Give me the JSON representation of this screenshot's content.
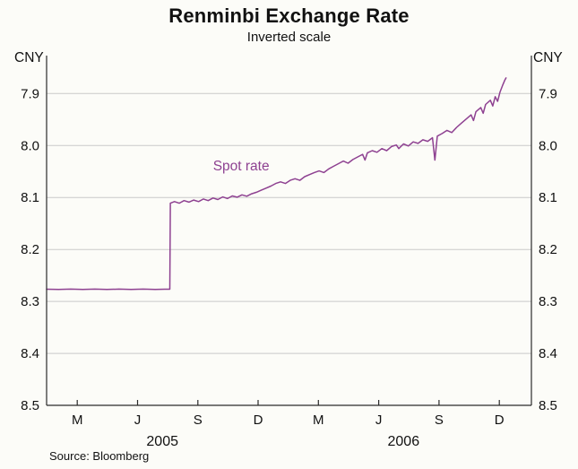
{
  "chart": {
    "title": "Renminbi Exchange Rate",
    "subtitle": "Inverted scale",
    "y_unit_left": "CNY",
    "y_unit_right": "CNY",
    "series_label": "Spot rate",
    "source": "Source: Bloomberg"
  },
  "chart_data": {
    "type": "line",
    "title": "Renminbi Exchange Rate",
    "subtitle": "Inverted scale",
    "xlabel": "",
    "ylabel": "CNY",
    "y_axis_inverted": true,
    "grid": true,
    "xlim": [
      2005.04,
      2007.05
    ],
    "ylim": [
      7.827,
      8.5
    ],
    "y_ticks": [
      7.9,
      8.0,
      8.1,
      8.2,
      8.3,
      8.4,
      8.5
    ],
    "x_ticks": [
      {
        "at": 2005.167,
        "label": "M"
      },
      {
        "at": 2005.417,
        "label": "J"
      },
      {
        "at": 2005.667,
        "label": "S"
      },
      {
        "at": 2005.917,
        "label": "D"
      },
      {
        "at": 2006.167,
        "label": "M"
      },
      {
        "at": 2006.417,
        "label": "J"
      },
      {
        "at": 2006.667,
        "label": "S"
      },
      {
        "at": 2006.917,
        "label": "D"
      }
    ],
    "year_labels": [
      {
        "at": 2005.52,
        "label": "2005"
      },
      {
        "at": 2006.52,
        "label": "2006"
      }
    ],
    "annotation": {
      "text": "Spot rate",
      "x": 2005.73,
      "y": 8.048
    },
    "line_color": "#8e4191",
    "grid_color": "#c9c9c9",
    "axis_color": "#2b2b2b",
    "source": "Source: Bloomberg",
    "series": [
      {
        "name": "Spot rate",
        "points": [
          [
            2005.04,
            8.2765
          ],
          [
            2005.09,
            8.277
          ],
          [
            2005.14,
            8.2763
          ],
          [
            2005.19,
            8.277
          ],
          [
            2005.24,
            8.2764
          ],
          [
            2005.29,
            8.277
          ],
          [
            2005.34,
            8.2764
          ],
          [
            2005.39,
            8.277
          ],
          [
            2005.44,
            8.2764
          ],
          [
            2005.49,
            8.277
          ],
          [
            2005.53,
            8.2765
          ],
          [
            2005.551,
            8.2765
          ],
          [
            2005.553,
            8.111
          ],
          [
            2005.57,
            8.108
          ],
          [
            2005.59,
            8.111
          ],
          [
            2005.61,
            8.106
          ],
          [
            2005.63,
            8.109
          ],
          [
            2005.65,
            8.105
          ],
          [
            2005.67,
            8.108
          ],
          [
            2005.69,
            8.103
          ],
          [
            2005.71,
            8.106
          ],
          [
            2005.73,
            8.101
          ],
          [
            2005.75,
            8.104
          ],
          [
            2005.77,
            8.099
          ],
          [
            2005.79,
            8.102
          ],
          [
            2005.81,
            8.097
          ],
          [
            2005.83,
            8.0995
          ],
          [
            2005.85,
            8.095
          ],
          [
            2005.87,
            8.0975
          ],
          [
            2005.89,
            8.093
          ],
          [
            2005.91,
            8.09
          ],
          [
            2005.93,
            8.086
          ],
          [
            2005.95,
            8.082
          ],
          [
            2005.97,
            8.078
          ],
          [
            2005.99,
            8.073
          ],
          [
            2006.01,
            8.07
          ],
          [
            2006.03,
            8.073
          ],
          [
            2006.05,
            8.067
          ],
          [
            2006.07,
            8.064
          ],
          [
            2006.09,
            8.067
          ],
          [
            2006.11,
            8.06
          ],
          [
            2006.13,
            8.056
          ],
          [
            2006.15,
            8.052
          ],
          [
            2006.17,
            8.049
          ],
          [
            2006.19,
            8.052
          ],
          [
            2006.21,
            8.045
          ],
          [
            2006.23,
            8.04
          ],
          [
            2006.25,
            8.035
          ],
          [
            2006.27,
            8.03
          ],
          [
            2006.29,
            8.034
          ],
          [
            2006.31,
            8.027
          ],
          [
            2006.33,
            8.022
          ],
          [
            2006.35,
            8.017
          ],
          [
            2006.36,
            8.028
          ],
          [
            2006.37,
            8.014
          ],
          [
            2006.39,
            8.01
          ],
          [
            2006.41,
            8.013
          ],
          [
            2006.43,
            8.006
          ],
          [
            2006.45,
            8.01
          ],
          [
            2006.47,
            8.002
          ],
          [
            2006.49,
            7.999
          ],
          [
            2006.5,
            8.006
          ],
          [
            2006.52,
            7.997
          ],
          [
            2006.54,
            8.001
          ],
          [
            2006.56,
            7.993
          ],
          [
            2006.58,
            7.996
          ],
          [
            2006.6,
            7.989
          ],
          [
            2006.62,
            7.992
          ],
          [
            2006.64,
            7.985
          ],
          [
            2006.65,
            8.028
          ],
          [
            2006.66,
            7.982
          ],
          [
            2006.68,
            7.977
          ],
          [
            2006.7,
            7.971
          ],
          [
            2006.72,
            7.975
          ],
          [
            2006.74,
            7.965
          ],
          [
            2006.76,
            7.957
          ],
          [
            2006.78,
            7.949
          ],
          [
            2006.8,
            7.941
          ],
          [
            2006.81,
            7.952
          ],
          [
            2006.82,
            7.935
          ],
          [
            2006.84,
            7.927
          ],
          [
            2006.85,
            7.938
          ],
          [
            2006.86,
            7.921
          ],
          [
            2006.88,
            7.913
          ],
          [
            2006.89,
            7.924
          ],
          [
            2006.9,
            7.906
          ],
          [
            2006.91,
            7.915
          ],
          [
            2006.92,
            7.897
          ],
          [
            2006.93,
            7.885
          ],
          [
            2006.94,
            7.874
          ],
          [
            2006.945,
            7.87
          ]
        ]
      }
    ]
  }
}
